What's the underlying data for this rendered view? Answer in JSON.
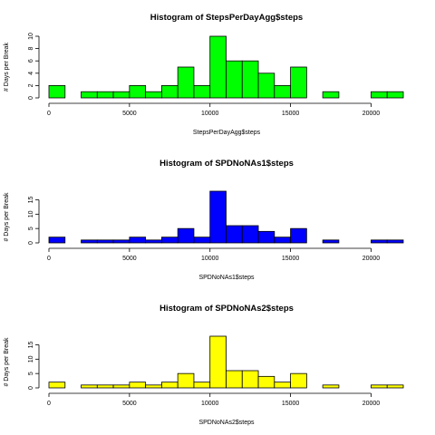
{
  "chart_data": [
    {
      "type": "bar",
      "title": "Histogram of StepsPerDayAgg$steps",
      "xlabel": "StepsPerDayAgg$steps",
      "ylabel": "# Days per Break",
      "fill": "#00ff00",
      "bin_width": 1000,
      "bin_starts": [
        0,
        1000,
        2000,
        3000,
        4000,
        5000,
        6000,
        7000,
        8000,
        9000,
        10000,
        11000,
        12000,
        13000,
        14000,
        15000,
        16000,
        17000,
        18000,
        19000,
        20000,
        21000
      ],
      "values": [
        2,
        0,
        1,
        1,
        1,
        2,
        1,
        2,
        5,
        2,
        10,
        6,
        6,
        4,
        2,
        5,
        0,
        1,
        0,
        0,
        1,
        1
      ],
      "xlim": [
        0,
        22000
      ],
      "ylim": [
        0,
        10
      ],
      "xticks": [
        "0",
        "5000",
        "10000",
        "15000",
        "20000"
      ],
      "xtick_values": [
        0,
        5000,
        10000,
        15000,
        20000
      ],
      "yticks": [
        "0",
        "2",
        "4",
        "6",
        "8",
        "10"
      ],
      "ytick_values": [
        0,
        2,
        4,
        6,
        8,
        10
      ]
    },
    {
      "type": "bar",
      "title": "Histogram of SPDNoNAs1$steps",
      "xlabel": "SPDNoNAs1$steps",
      "ylabel": "# Days per Break",
      "fill": "#0000ff",
      "bin_width": 1000,
      "bin_starts": [
        0,
        1000,
        2000,
        3000,
        4000,
        5000,
        6000,
        7000,
        8000,
        9000,
        10000,
        11000,
        12000,
        13000,
        14000,
        15000,
        16000,
        17000,
        18000,
        19000,
        20000,
        21000
      ],
      "values": [
        2,
        0,
        1,
        1,
        1,
        2,
        1,
        2,
        5,
        2,
        18,
        6,
        6,
        4,
        2,
        5,
        0,
        1,
        0,
        0,
        1,
        1
      ],
      "xlim": [
        0,
        22000
      ],
      "ylim": [
        0,
        18
      ],
      "xticks": [
        "0",
        "5000",
        "10000",
        "15000",
        "20000"
      ],
      "xtick_values": [
        0,
        5000,
        10000,
        15000,
        20000
      ],
      "yticks": [
        "0",
        "5",
        "10",
        "15"
      ],
      "ytick_values": [
        0,
        5,
        10,
        15
      ]
    },
    {
      "type": "bar",
      "title": "Histogram of SPDNoNAs2$steps",
      "xlabel": "SPDNoNAs2$steps",
      "ylabel": "# Days per Break",
      "fill": "#ffff00",
      "bin_width": 1000,
      "bin_starts": [
        0,
        1000,
        2000,
        3000,
        4000,
        5000,
        6000,
        7000,
        8000,
        9000,
        10000,
        11000,
        12000,
        13000,
        14000,
        15000,
        16000,
        17000,
        18000,
        19000,
        20000,
        21000
      ],
      "values": [
        2,
        0,
        1,
        1,
        1,
        2,
        1,
        2,
        5,
        2,
        18,
        6,
        6,
        4,
        2,
        5,
        0,
        1,
        0,
        0,
        1,
        1
      ],
      "xlim": [
        0,
        22000
      ],
      "ylim": [
        0,
        18
      ],
      "xticks": [
        "0",
        "5000",
        "10000",
        "15000",
        "20000"
      ],
      "xtick_values": [
        0,
        5000,
        10000,
        15000,
        20000
      ],
      "yticks": [
        "0",
        "5",
        "10",
        "15"
      ],
      "ytick_values": [
        0,
        5,
        10,
        15
      ]
    }
  ]
}
